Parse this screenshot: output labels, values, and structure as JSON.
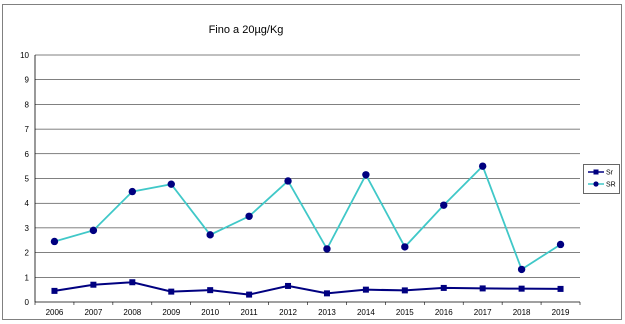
{
  "chart_data": {
    "type": "line",
    "title": "Fino a 20µg/Kg",
    "categories": [
      "2006",
      "2007",
      "2008",
      "2009",
      "2010",
      "2011",
      "2012",
      "2013",
      "2014",
      "2015",
      "2016",
      "2017",
      "2018",
      "2019"
    ],
    "series": [
      {
        "name": "Sr",
        "marker": "square",
        "color": "#000080",
        "values": [
          0.45,
          0.7,
          0.8,
          0.42,
          0.48,
          0.3,
          0.65,
          0.35,
          0.5,
          0.47,
          0.57,
          0.55,
          0.54,
          0.53
        ]
      },
      {
        "name": "SR",
        "marker": "circle",
        "color": "#40C8C8",
        "values": [
          2.45,
          2.9,
          4.47,
          4.77,
          2.72,
          3.47,
          4.9,
          2.15,
          5.15,
          2.23,
          3.92,
          5.5,
          1.32,
          2.33
        ]
      }
    ],
    "ylim": [
      0,
      10
    ],
    "yticks": [
      "0",
      "1",
      "2",
      "3",
      "4",
      "5",
      "6",
      "7",
      "8",
      "9",
      "10"
    ],
    "grid": true,
    "legend_position": "right"
  }
}
